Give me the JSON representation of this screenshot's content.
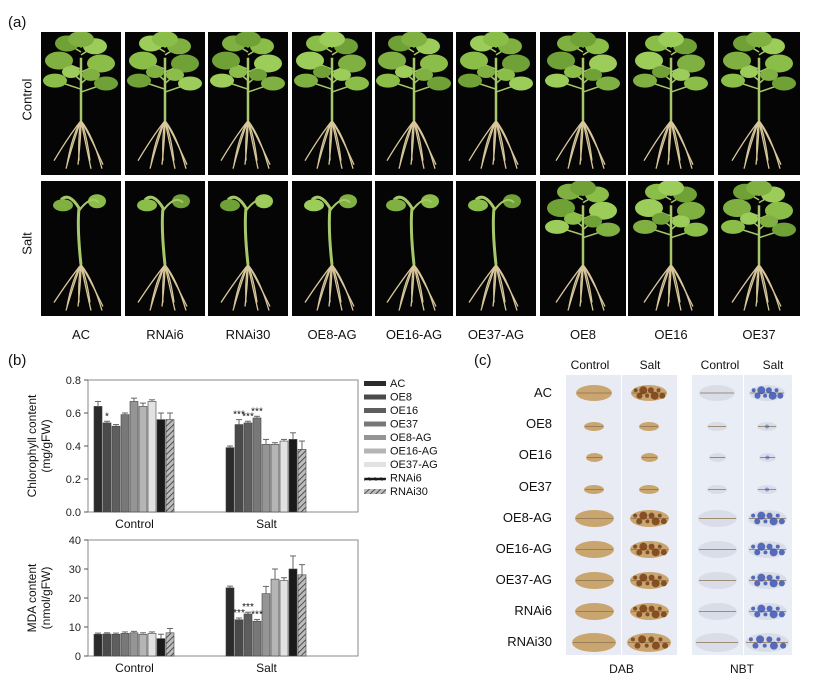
{
  "panel_a": {
    "label": "(a)",
    "row_labels": [
      "Control",
      "Salt"
    ],
    "genotypes": [
      "AC",
      "RNAi6",
      "RNAi30",
      "OE8-AG",
      "OE16-AG",
      "OE37-AG",
      "OE8",
      "OE16",
      "OE37"
    ]
  },
  "panel_b": {
    "label": "(b)"
  },
  "panel_c": {
    "label": "(c)",
    "col_headers": [
      "Control",
      "Salt",
      "Control",
      "Salt"
    ],
    "row_labels": [
      "AC",
      "OE8",
      "OE16",
      "OE37",
      "OE8-AG",
      "OE16-AG",
      "OE37-AG",
      "RNAi6",
      "RNAi30"
    ],
    "stain_labels": [
      "DAB",
      "NBT"
    ],
    "colors": {
      "dab_bg": "#e8ebf4",
      "dab_leaf": "#c9a670",
      "dab_spot": "#7a3f15",
      "nbt_bg": "#e9edf6",
      "nbt_leaf": "#d9dde8",
      "nbt_spot": "#3d56b0"
    }
  },
  "chart_data": [
    {
      "type": "bar",
      "ylabel": "Chlorophyll content\n(mg/gFW)",
      "categories": [
        "Control",
        "Salt"
      ],
      "ylim": [
        0,
        0.8
      ],
      "yticks": [
        "0.0",
        "0.2",
        "0.4",
        "0.6",
        "0.8"
      ],
      "legend": [
        "AC",
        "OE8",
        "OE16",
        "OE37",
        "OE8-AG",
        "OE16-AG",
        "OE37-AG",
        "RNAi6",
        "RNAi30"
      ],
      "series": [
        {
          "name": "AC",
          "values": [
            0.64,
            0.39
          ],
          "err": [
            0.03,
            0.01
          ],
          "color": "#2b2b2b"
        },
        {
          "name": "OE8",
          "values": [
            0.54,
            0.53
          ],
          "err": [
            0.01,
            0.03
          ],
          "color": "#4a4a4a"
        },
        {
          "name": "OE16",
          "values": [
            0.52,
            0.54
          ],
          "err": [
            0.01,
            0.01
          ],
          "color": "#5e5e5e"
        },
        {
          "name": "OE37",
          "values": [
            0.59,
            0.57
          ],
          "err": [
            0.01,
            0.01
          ],
          "color": "#787878"
        },
        {
          "name": "OE8-AG",
          "values": [
            0.67,
            0.41
          ],
          "err": [
            0.02,
            0.03
          ],
          "color": "#959595"
        },
        {
          "name": "OE16-AG",
          "values": [
            0.64,
            0.41
          ],
          "err": [
            0.02,
            0.01
          ],
          "color": "#b5b5b5"
        },
        {
          "name": "OE37-AG",
          "values": [
            0.67,
            0.43
          ],
          "err": [
            0.01,
            0.01
          ],
          "color": "#e2e2e2"
        },
        {
          "name": "RNAi6",
          "values": [
            0.56,
            0.44
          ],
          "err": [
            0.04,
            0.04
          ],
          "color": "#1a1a1a"
        },
        {
          "name": "RNAi30",
          "values": [
            0.56,
            0.38
          ],
          "err": [
            0.04,
            0.05
          ],
          "color": "#8a8a8a",
          "hatch": true
        }
      ],
      "annotations": [
        {
          "category": "Control",
          "series": "OE8",
          "text": "*"
        },
        {
          "category": "Salt",
          "series": "OE8",
          "text": "***"
        },
        {
          "category": "Salt",
          "series": "OE16",
          "text": "***"
        },
        {
          "category": "Salt",
          "series": "OE37",
          "text": "***"
        }
      ]
    },
    {
      "type": "bar",
      "ylabel": "MDA content\n(nmol/gFW)",
      "categories": [
        "Control",
        "Salt"
      ],
      "ylim": [
        0,
        40
      ],
      "yticks": [
        "0",
        "10",
        "20",
        "30",
        "40"
      ],
      "series": [
        {
          "name": "AC",
          "values": [
            7.5,
            23.5
          ],
          "err": [
            0.4,
            0.6
          ],
          "color": "#2b2b2b"
        },
        {
          "name": "OE8",
          "values": [
            7.6,
            12.5
          ],
          "err": [
            0.4,
            0.6
          ],
          "color": "#4a4a4a"
        },
        {
          "name": "OE16",
          "values": [
            7.5,
            14.5
          ],
          "err": [
            0.4,
            0.6
          ],
          "color": "#5e5e5e"
        },
        {
          "name": "OE37",
          "values": [
            7.8,
            12.0
          ],
          "err": [
            0.5,
            0.6
          ],
          "color": "#787878"
        },
        {
          "name": "OE8-AG",
          "values": [
            8.0,
            21.5
          ],
          "err": [
            0.5,
            2.5
          ],
          "color": "#959595"
        },
        {
          "name": "OE16-AG",
          "values": [
            7.5,
            26.5
          ],
          "err": [
            0.5,
            3.5
          ],
          "color": "#b5b5b5"
        },
        {
          "name": "OE37-AG",
          "values": [
            7.8,
            26.0
          ],
          "err": [
            0.5,
            1.0
          ],
          "color": "#e2e2e2"
        },
        {
          "name": "RNAi6",
          "values": [
            6.0,
            30.0
          ],
          "err": [
            1.5,
            4.5
          ],
          "color": "#1a1a1a"
        },
        {
          "name": "RNAi30",
          "values": [
            8.0,
            28.0
          ],
          "err": [
            1.5,
            3.5
          ],
          "color": "#8a8a8a",
          "hatch": true
        }
      ],
      "annotations": [
        {
          "category": "Salt",
          "series": "OE8",
          "text": "***"
        },
        {
          "category": "Salt",
          "series": "OE16",
          "text": "***"
        },
        {
          "category": "Salt",
          "series": "OE37",
          "text": "***"
        }
      ]
    }
  ]
}
